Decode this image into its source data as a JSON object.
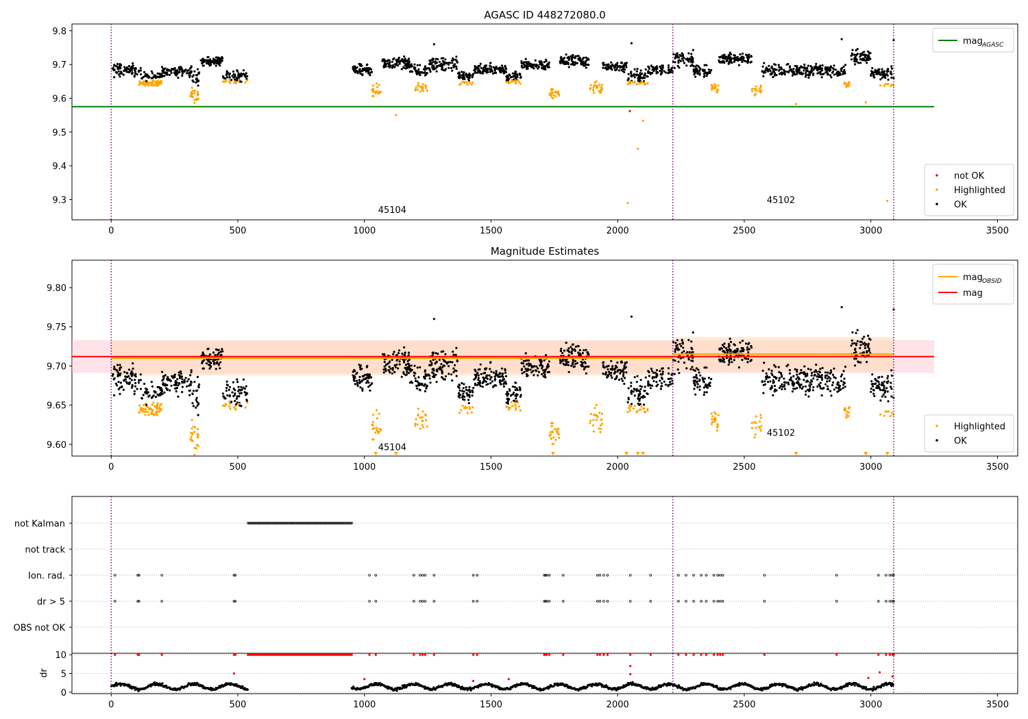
{
  "chart_data": [
    {
      "type": "scatter",
      "title": "AGASC ID 448272080.0",
      "xlim": [
        -155,
        3580
      ],
      "ylim": [
        9.24,
        9.82
      ],
      "xticks": [
        0,
        500,
        1000,
        1500,
        2000,
        2500,
        3000,
        3500
      ],
      "yticks": [
        9.3,
        9.4,
        9.5,
        9.6,
        9.7,
        9.8
      ],
      "ytick_labels": [
        "9.3",
        "9.4",
        "9.5",
        "9.6",
        "9.7",
        "9.8"
      ],
      "colors": {
        "ok": "#000000",
        "highlighted": "#ffa500",
        "not_ok": "#ff0000",
        "agasc_line": "#008000",
        "obsid_boundary": "#800080"
      },
      "hlines": [
        {
          "name": "mag_AGASC",
          "y": 9.575,
          "x": [
            -155,
            3250
          ]
        }
      ],
      "vlines": [
        0,
        2218,
        3090
      ],
      "legend_lines": [
        {
          "label": "mag",
          "sub": "AGASC",
          "color": "#008000"
        }
      ],
      "legend_points": [
        {
          "label": "not OK",
          "color": "#ff0000"
        },
        {
          "label": "Highlighted",
          "color": "#ffa500"
        },
        {
          "label": "OK",
          "color": "#000000"
        }
      ],
      "legend_lines_position": "top-right",
      "legend_points_position": "bottom-right",
      "annotations": [
        {
          "text": "45104",
          "x": 1110,
          "y": 9.27
        },
        {
          "text": "45102",
          "x": 2645,
          "y": 9.3
        }
      ],
      "clusters": [
        {
          "x0": 0,
          "x1": 120,
          "y": 9.683,
          "sd": 0.012,
          "n": 80,
          "status": "ok"
        },
        {
          "x0": 110,
          "x1": 200,
          "y": 9.645,
          "sd": 0.005,
          "n": 60,
          "status": "highlighted"
        },
        {
          "x0": 120,
          "x1": 200,
          "y": 9.665,
          "sd": 0.008,
          "n": 40,
          "status": "ok"
        },
        {
          "x0": 200,
          "x1": 320,
          "y": 9.68,
          "sd": 0.01,
          "n": 90,
          "status": "ok"
        },
        {
          "x0": 310,
          "x1": 345,
          "y": 9.61,
          "sd": 0.012,
          "n": 25,
          "status": "highlighted"
        },
        {
          "x0": 320,
          "x1": 350,
          "y": 9.665,
          "sd": 0.015,
          "n": 20,
          "status": "ok"
        },
        {
          "x0": 350,
          "x1": 440,
          "y": 9.71,
          "sd": 0.008,
          "n": 80,
          "status": "ok"
        },
        {
          "x0": 440,
          "x1": 540,
          "y": 9.665,
          "sd": 0.01,
          "n": 60,
          "status": "ok"
        },
        {
          "x0": 440,
          "x1": 540,
          "y": 9.648,
          "sd": 0.004,
          "n": 15,
          "status": "highlighted"
        },
        {
          "x0": 950,
          "x1": 1030,
          "y": 9.685,
          "sd": 0.01,
          "n": 60,
          "status": "ok"
        },
        {
          "x0": 1030,
          "x1": 1070,
          "y": 9.62,
          "sd": 0.012,
          "n": 20,
          "status": "highlighted"
        },
        {
          "x0": 1070,
          "x1": 1180,
          "y": 9.703,
          "sd": 0.012,
          "n": 90,
          "status": "ok"
        },
        {
          "x0": 1180,
          "x1": 1250,
          "y": 9.68,
          "sd": 0.012,
          "n": 50,
          "status": "ok"
        },
        {
          "x0": 1200,
          "x1": 1250,
          "y": 9.63,
          "sd": 0.01,
          "n": 20,
          "status": "highlighted"
        },
        {
          "x0": 1250,
          "x1": 1370,
          "y": 9.7,
          "sd": 0.015,
          "n": 90,
          "status": "ok"
        },
        {
          "x0": 1370,
          "x1": 1430,
          "y": 9.665,
          "sd": 0.008,
          "n": 40,
          "status": "ok"
        },
        {
          "x0": 1370,
          "x1": 1430,
          "y": 9.645,
          "sd": 0.004,
          "n": 12,
          "status": "highlighted"
        },
        {
          "x0": 1430,
          "x1": 1560,
          "y": 9.685,
          "sd": 0.01,
          "n": 100,
          "status": "ok"
        },
        {
          "x0": 1560,
          "x1": 1620,
          "y": 9.665,
          "sd": 0.008,
          "n": 40,
          "status": "ok"
        },
        {
          "x0": 1560,
          "x1": 1620,
          "y": 9.648,
          "sd": 0.004,
          "n": 15,
          "status": "highlighted"
        },
        {
          "x0": 1620,
          "x1": 1730,
          "y": 9.7,
          "sd": 0.01,
          "n": 80,
          "status": "ok"
        },
        {
          "x0": 1730,
          "x1": 1770,
          "y": 9.615,
          "sd": 0.012,
          "n": 25,
          "status": "highlighted"
        },
        {
          "x0": 1770,
          "x1": 1890,
          "y": 9.71,
          "sd": 0.012,
          "n": 90,
          "status": "ok"
        },
        {
          "x0": 1890,
          "x1": 1940,
          "y": 9.63,
          "sd": 0.012,
          "n": 25,
          "status": "highlighted"
        },
        {
          "x0": 1940,
          "x1": 2040,
          "y": 9.695,
          "sd": 0.01,
          "n": 70,
          "status": "ok"
        },
        {
          "x0": 2040,
          "x1": 2120,
          "y": 9.665,
          "sd": 0.012,
          "n": 50,
          "status": "ok"
        },
        {
          "x0": 2040,
          "x1": 2120,
          "y": 9.645,
          "sd": 0.005,
          "n": 20,
          "status": "highlighted"
        },
        {
          "x0": 2120,
          "x1": 2218,
          "y": 9.685,
          "sd": 0.01,
          "n": 60,
          "status": "ok"
        },
        {
          "x0": 2218,
          "x1": 2300,
          "y": 9.715,
          "sd": 0.015,
          "n": 60,
          "status": "ok"
        },
        {
          "x0": 2300,
          "x1": 2370,
          "y": 9.68,
          "sd": 0.01,
          "n": 50,
          "status": "ok"
        },
        {
          "x0": 2370,
          "x1": 2400,
          "y": 9.628,
          "sd": 0.008,
          "n": 20,
          "status": "highlighted"
        },
        {
          "x0": 2400,
          "x1": 2530,
          "y": 9.718,
          "sd": 0.01,
          "n": 100,
          "status": "ok"
        },
        {
          "x0": 2530,
          "x1": 2570,
          "y": 9.625,
          "sd": 0.01,
          "n": 15,
          "status": "highlighted"
        },
        {
          "x0": 2570,
          "x1": 2900,
          "y": 9.682,
          "sd": 0.012,
          "n": 220,
          "status": "ok"
        },
        {
          "x0": 2890,
          "x1": 2920,
          "y": 9.64,
          "sd": 0.006,
          "n": 15,
          "status": "highlighted"
        },
        {
          "x0": 2920,
          "x1": 3000,
          "y": 9.722,
          "sd": 0.012,
          "n": 60,
          "status": "ok"
        },
        {
          "x0": 3000,
          "x1": 3090,
          "y": 9.672,
          "sd": 0.012,
          "n": 60,
          "status": "ok"
        },
        {
          "x0": 3030,
          "x1": 3090,
          "y": 9.64,
          "sd": 0.004,
          "n": 8,
          "status": "highlighted"
        }
      ],
      "outliers": [
        {
          "x": 1125,
          "y": 9.55,
          "status": "highlighted"
        },
        {
          "x": 2040,
          "y": 9.29,
          "status": "highlighted"
        },
        {
          "x": 2080,
          "y": 9.45,
          "status": "highlighted"
        },
        {
          "x": 2100,
          "y": 9.533,
          "status": "highlighted"
        },
        {
          "x": 2048,
          "y": 9.562,
          "status": "not_ok"
        },
        {
          "x": 2705,
          "y": 9.583,
          "status": "highlighted"
        },
        {
          "x": 2980,
          "y": 9.588,
          "status": "highlighted"
        },
        {
          "x": 3065,
          "y": 9.296,
          "status": "highlighted"
        },
        {
          "x": 1275,
          "y": 9.76,
          "status": "ok"
        },
        {
          "x": 2055,
          "y": 9.763,
          "status": "ok"
        },
        {
          "x": 2885,
          "y": 9.775,
          "status": "ok"
        },
        {
          "x": 3090,
          "y": 9.772,
          "status": "ok"
        }
      ]
    },
    {
      "type": "scatter",
      "title": "Magnitude Estimates",
      "xlim": [
        -155,
        3580
      ],
      "ylim": [
        9.585,
        9.835
      ],
      "xticks": [
        0,
        500,
        1000,
        1500,
        2000,
        2500,
        3000,
        3500
      ],
      "yticks": [
        9.6,
        9.65,
        9.7,
        9.75,
        9.8
      ],
      "ytick_labels": [
        "9.60",
        "9.65",
        "9.70",
        "9.75",
        "9.80"
      ],
      "colors": {
        "ok": "#000000",
        "highlighted": "#ffa500",
        "mag_line": "#ff0000",
        "obsid_line": "#ffa500",
        "mag_band": "#ffc0cb",
        "obsid_band": "#ffdab9"
      },
      "mag": {
        "value": 9.712,
        "err": 0.021,
        "x": [
          -155,
          3250
        ]
      },
      "mag_obsid": [
        {
          "obsid": "45104",
          "x": [
            0,
            2218
          ],
          "value": 9.71,
          "err": 0.022
        },
        {
          "obsid": "45102",
          "x": [
            2218,
            3090
          ],
          "value": 9.715,
          "err": 0.022
        }
      ],
      "vlines": [
        0,
        2218,
        3090
      ],
      "legend_lines": [
        {
          "label": "mag",
          "sub": "OBSID",
          "color": "#ffa500"
        },
        {
          "label": "mag",
          "sub": "",
          "color": "#ff0000"
        }
      ],
      "legend_points": [
        {
          "label": "Highlighted",
          "color": "#ffa500"
        },
        {
          "label": "OK",
          "color": "#000000"
        }
      ],
      "legend_lines_position": "top-right",
      "legend_points_position": "bottom-right",
      "annotations": [
        {
          "text": "45104",
          "x": 1110,
          "y": 9.597
        },
        {
          "text": "45102",
          "x": 2645,
          "y": 9.615
        }
      ],
      "clusters_from_panel": 0,
      "clipped_below": [
        1045,
        1125,
        1745,
        2035,
        2080,
        2100,
        2705,
        2980,
        3065
      ]
    },
    {
      "type": "flags",
      "xlim": [
        -155,
        3580
      ],
      "rows": [
        "not Kalman",
        "not track",
        "Ion. rad.",
        "dr > 5",
        "OBS not OK"
      ],
      "flag_x": {
        "not Kalman": [
          [
            540,
            950
          ]
        ],
        "not track": [],
        "Ion. rad.": [
          15,
          105,
          110,
          200,
          485,
          490,
          1020,
          1045,
          1195,
          1220,
          1230,
          1240,
          1275,
          1430,
          1445,
          1710,
          1715,
          1720,
          1730,
          1785,
          1920,
          1930,
          1945,
          1960,
          2050,
          2130,
          2240,
          2270,
          2300,
          2330,
          2350,
          2380,
          2395,
          2405,
          2415,
          2580,
          2865,
          3030,
          3060,
          3075,
          3085,
          3090
        ],
        "dr > 5": [
          15,
          105,
          110,
          200,
          485,
          490,
          1020,
          1045,
          1195,
          1220,
          1230,
          1240,
          1275,
          1430,
          1445,
          1710,
          1715,
          1720,
          1730,
          1785,
          1920,
          1930,
          1945,
          1960,
          2050,
          2130,
          2240,
          2270,
          2300,
          2330,
          2350,
          2380,
          2395,
          2405,
          2415,
          2580,
          2865,
          3030,
          3060,
          3075,
          3085,
          3090
        ],
        "OBS not OK": []
      },
      "vlines": [
        0,
        2218,
        3090
      ]
    },
    {
      "type": "scatter",
      "ylabel": "dr",
      "xlim": [
        -155,
        3580
      ],
      "ylim": [
        -0.4,
        10.4
      ],
      "xticks": [
        0,
        500,
        1000,
        1500,
        2000,
        2500,
        3000,
        3500
      ],
      "yticks": [
        0,
        5,
        10
      ],
      "ytick_labels": [
        "0",
        "5",
        "10"
      ],
      "dr_segments": [
        [
          0,
          540
        ],
        [
          950,
          3090
        ]
      ],
      "dr_typical": [
        0.5,
        2.5
      ],
      "dr_clipped": 10,
      "dr_outliers": [
        {
          "x": 485,
          "y": 5.0
        },
        {
          "x": 1000,
          "y": 3.5
        },
        {
          "x": 1430,
          "y": 3.0
        },
        {
          "x": 1570,
          "y": 3.5
        },
        {
          "x": 2050,
          "y": 7.0
        },
        {
          "x": 2050,
          "y": 4.8
        },
        {
          "x": 2990,
          "y": 3.8
        },
        {
          "x": 3035,
          "y": 5.3
        },
        {
          "x": 3085,
          "y": 4.2
        }
      ],
      "vlines": [
        0,
        2218,
        3090
      ]
    }
  ]
}
